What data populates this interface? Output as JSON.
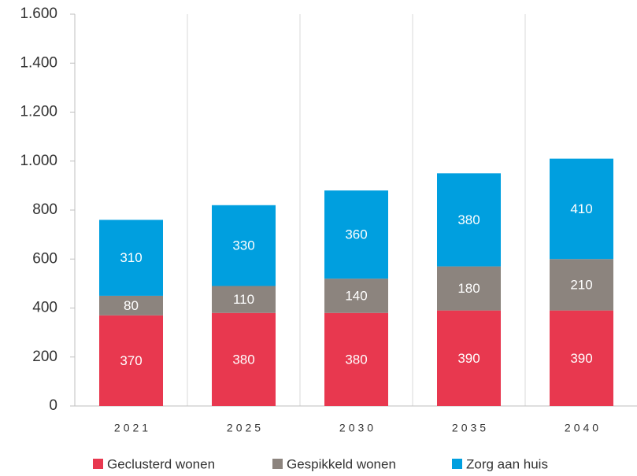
{
  "chart_data": {
    "type": "stacked_bar",
    "categories": [
      "2021",
      "2025",
      "2030",
      "2035",
      "2040"
    ],
    "series": [
      {
        "name": "Geclusterd wonen",
        "color": "#e8384f",
        "values": [
          370,
          380,
          380,
          390,
          390
        ]
      },
      {
        "name": "Gespikkeld wonen",
        "color": "#8c847e",
        "values": [
          80,
          110,
          140,
          180,
          210
        ]
      },
      {
        "name": "Zorg aan huis",
        "color": "#009fdf",
        "values": [
          310,
          330,
          360,
          380,
          410
        ]
      }
    ],
    "ylim": [
      0,
      1600
    ],
    "yticks": [
      0,
      200,
      400,
      600,
      800,
      {
        "value": 1000,
        "label": "1.000"
      },
      {
        "value": 1200,
        "label": "1.200"
      },
      {
        "value": 1400,
        "label": "1.400"
      },
      {
        "value": 1600,
        "label": "1.600"
      }
    ],
    "legend": "bottom"
  }
}
